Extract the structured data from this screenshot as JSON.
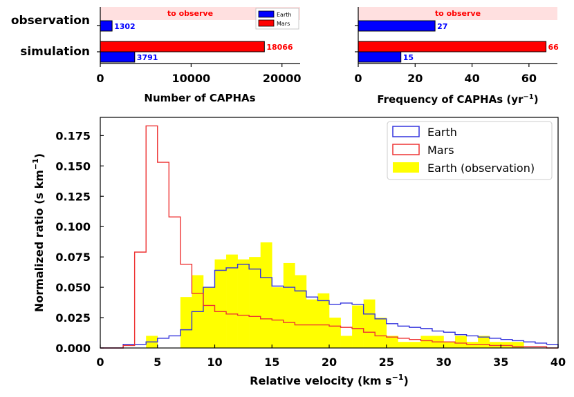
{
  "chart_data": [
    {
      "type": "bar",
      "orientation": "horizontal",
      "categories": [
        "observation",
        "simulation"
      ],
      "series": [
        {
          "name": "Earth",
          "color": "#0000ff",
          "values": [
            1302,
            3791
          ]
        },
        {
          "name": "Mars",
          "color": "#ff0000",
          "values": [
            null,
            18066
          ]
        }
      ],
      "value_labels": {
        "observation_earth": "1302",
        "simulation_mars": "18066",
        "simulation_earth": "3791"
      },
      "band_label": "to observe",
      "band_color": "#ffe0e0",
      "xlabel": "Number of CAPHAs",
      "xlim": [
        0,
        22000
      ],
      "xticks": [
        0,
        10000,
        20000
      ],
      "legend": "top-right"
    },
    {
      "type": "bar",
      "orientation": "horizontal",
      "categories": [
        "observation",
        "simulation"
      ],
      "series": [
        {
          "name": "Earth",
          "color": "#0000ff",
          "values": [
            27,
            15
          ]
        },
        {
          "name": "Mars",
          "color": "#ff0000",
          "values": [
            null,
            66
          ]
        }
      ],
      "value_labels": {
        "observation_earth": "27",
        "simulation_mars": "66",
        "simulation_earth": "15"
      },
      "band_label": "to observe",
      "band_color": "#ffe0e0",
      "xlabel_main": "Frequency of CAPHAs (yr",
      "xlabel_sup": "−1",
      "xlabel_close": ")",
      "xlim": [
        0,
        70
      ],
      "xticks": [
        0,
        20,
        40,
        60
      ]
    },
    {
      "type": "line",
      "style": "step-histogram",
      "bin_width": 1,
      "bin_start": 0,
      "xlabel_main": "Relative velocity (km s",
      "xlabel_sup": "−1",
      "xlabel_close": ")",
      "ylabel_main": "Normalized ratio (s km",
      "ylabel_sup": "−1",
      "ylabel_close": ")",
      "xlim": [
        0,
        40
      ],
      "ylim": [
        0,
        0.19
      ],
      "xticks": [
        0,
        5,
        10,
        15,
        20,
        25,
        30,
        35,
        40
      ],
      "yticks": [
        "0.000",
        "0.025",
        "0.050",
        "0.075",
        "0.100",
        "0.125",
        "0.150",
        "0.175"
      ],
      "ytick_values": [
        0,
        0.025,
        0.05,
        0.075,
        0.1,
        0.125,
        0.15,
        0.175
      ],
      "legend": "top-right",
      "series": [
        {
          "name": "Earth",
          "kind": "step",
          "color": "#3333dd",
          "values": [
            0.0,
            0.0,
            0.003,
            0.003,
            0.005,
            0.008,
            0.01,
            0.015,
            0.03,
            0.05,
            0.064,
            0.066,
            0.069,
            0.065,
            0.058,
            0.051,
            0.05,
            0.047,
            0.042,
            0.039,
            0.036,
            0.037,
            0.036,
            0.028,
            0.024,
            0.02,
            0.018,
            0.017,
            0.016,
            0.014,
            0.013,
            0.011,
            0.01,
            0.009,
            0.008,
            0.007,
            0.006,
            0.005,
            0.004,
            0.003
          ]
        },
        {
          "name": "Mars",
          "kind": "step",
          "color": "#ee3333",
          "values": [
            0.0,
            0.0,
            0.002,
            0.079,
            0.183,
            0.153,
            0.108,
            0.069,
            0.045,
            0.035,
            0.03,
            0.028,
            0.027,
            0.026,
            0.024,
            0.023,
            0.021,
            0.019,
            0.019,
            0.019,
            0.018,
            0.017,
            0.016,
            0.013,
            0.01,
            0.009,
            0.008,
            0.007,
            0.006,
            0.005,
            0.005,
            0.004,
            0.003,
            0.003,
            0.002,
            0.002,
            0.001,
            0.001,
            0.001,
            0.0
          ]
        },
        {
          "name": "Earth (observation)",
          "kind": "filled",
          "color": "#ffff00",
          "values": [
            0.0,
            0.0,
            0.0,
            0.0,
            0.01,
            0.0,
            0.0,
            0.042,
            0.06,
            0.05,
            0.073,
            0.077,
            0.073,
            0.075,
            0.087,
            0.05,
            0.07,
            0.06,
            0.04,
            0.045,
            0.025,
            0.01,
            0.035,
            0.04,
            0.025,
            0.01,
            0.005,
            0.005,
            0.01,
            0.01,
            0.005,
            0.01,
            0.005,
            0.01,
            0.005,
            0.005,
            0.005,
            0.0,
            0.0,
            0.0
          ]
        }
      ]
    }
  ]
}
